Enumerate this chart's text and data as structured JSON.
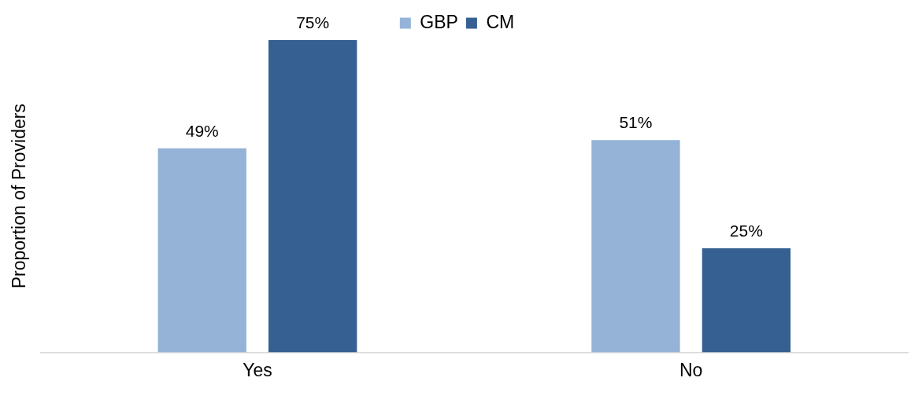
{
  "chart_data": {
    "type": "bar",
    "ylabel": "Proportion of Providers",
    "categories": [
      "Yes",
      "No"
    ],
    "legend": "top",
    "grid": false,
    "series": [
      {
        "name": "GBP",
        "color": "#95b3d7",
        "values": [
          49,
          51
        ],
        "value_labels": [
          "49%",
          "51%"
        ]
      },
      {
        "name": "CM",
        "color": "#366092",
        "values": [
          75,
          25
        ],
        "value_labels": [
          "75%",
          "25%"
        ]
      }
    ]
  }
}
